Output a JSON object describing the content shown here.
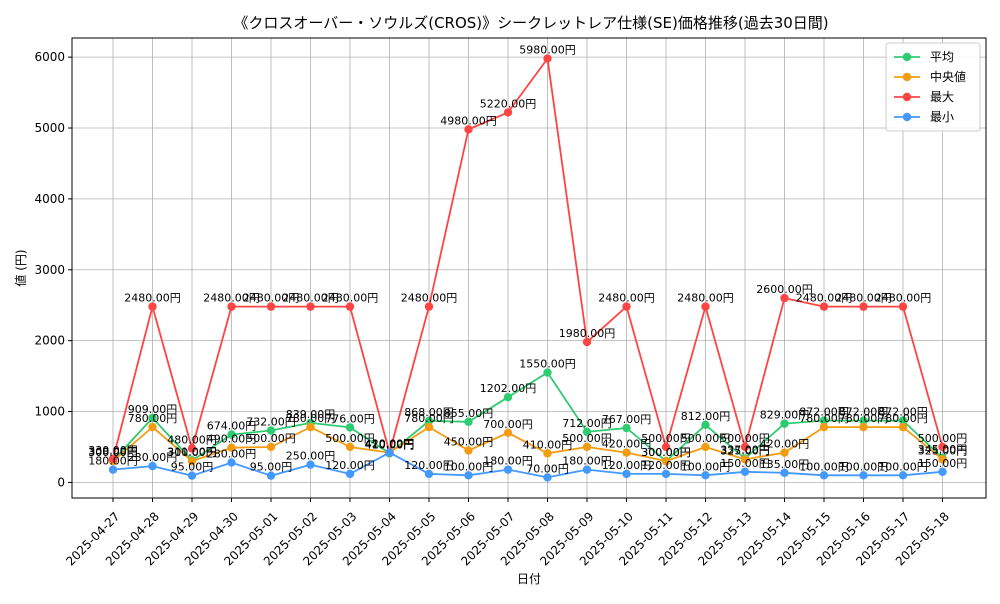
{
  "chart_data": {
    "type": "line",
    "title": "《クロスオーバー・ソウルズ(CROS)》シークレットレア仕様(SE)価格推移(過去30日間)",
    "xlabel": "日付",
    "ylabel": "値 (円)",
    "ylim": [
      -220,
      6270
    ],
    "yticks": [
      0,
      1000,
      2000,
      3000,
      4000,
      5000,
      6000
    ],
    "grid": true,
    "legend_position": "top-right",
    "categories": [
      "2025-04-27",
      "2025-04-28",
      "2025-04-29",
      "2025-04-30",
      "2025-05-01",
      "2025-05-02",
      "2025-05-03",
      "2025-05-04",
      "2025-05-05",
      "2025-05-06",
      "2025-05-07",
      "2025-05-08",
      "2025-05-09",
      "2025-05-10",
      "2025-05-11",
      "2025-05-12",
      "2025-05-13",
      "2025-05-14",
      "2025-05-15",
      "2025-05-16",
      "2025-05-17",
      "2025-05-18"
    ],
    "series": [
      {
        "name": "平均",
        "color": "#2ecc71",
        "values": [
          308,
          909,
          311,
          674,
          732,
          839,
          776,
          410,
          868,
          855,
          1202,
          1550,
          712,
          767,
          300,
          812,
          337,
          829,
          872,
          872,
          872,
          345
        ]
      },
      {
        "name": "中央値",
        "color": "#f39c12",
        "values": [
          300,
          780,
          300,
          490,
          500,
          780,
          500,
          420,
          780,
          450,
          700,
          410,
          500,
          420,
          300,
          500,
          325,
          420,
          780,
          780,
          780,
          325
        ]
      },
      {
        "name": "最大",
        "color": "#ff4444",
        "values": [
          330,
          2480,
          480,
          2480,
          2480,
          2480,
          2480,
          420,
          2480,
          4980,
          5220,
          5980,
          1980,
          2480,
          500,
          2480,
          500,
          2600,
          2480,
          2480,
          2480,
          500
        ]
      },
      {
        "name": "最小",
        "color": "#4499ff",
        "values": [
          180,
          230,
          95,
          280,
          95,
          250,
          120,
          420,
          120,
          100,
          180,
          70,
          180,
          120,
          120,
          100,
          150,
          135,
          100,
          100,
          100,
          150
        ]
      }
    ],
    "value_label_suffix": "円"
  }
}
